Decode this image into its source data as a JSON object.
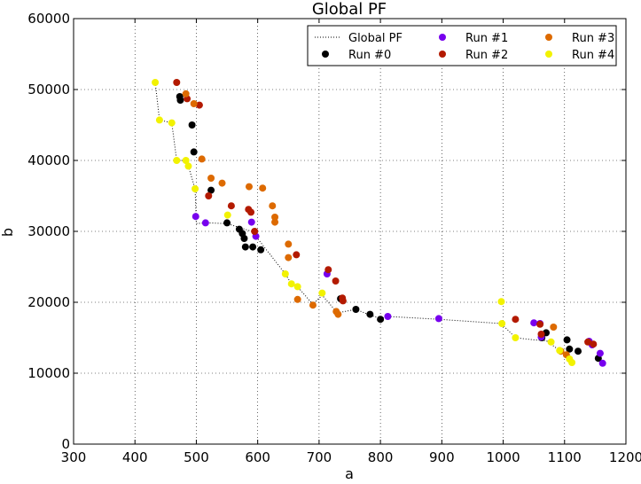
{
  "chart_data": {
    "type": "scatter",
    "title": "Global PF",
    "xlabel": "a",
    "ylabel": "b",
    "xlim": [
      300,
      1200
    ],
    "ylim": [
      0,
      60000
    ],
    "xticks": [
      300,
      400,
      500,
      600,
      700,
      800,
      900,
      1000,
      1100,
      1200
    ],
    "yticks": [
      0,
      10000,
      20000,
      30000,
      40000,
      50000,
      60000
    ],
    "grid": true,
    "legend_position": "top-right",
    "front": {
      "name": "Global PF",
      "color": "#000000",
      "style": "dotted",
      "points": [
        [
          433,
          51000
        ],
        [
          440,
          45700
        ],
        [
          460,
          45300
        ],
        [
          468,
          40000
        ],
        [
          483,
          40000
        ],
        [
          487,
          39200
        ],
        [
          498,
          36000
        ],
        [
          500,
          31100
        ],
        [
          515,
          31200
        ],
        [
          550,
          31100
        ],
        [
          590,
          30000
        ],
        [
          597,
          29300
        ],
        [
          645,
          24000
        ],
        [
          655,
          22600
        ],
        [
          665,
          22200
        ],
        [
          690,
          19700
        ],
        [
          705,
          21000
        ],
        [
          730,
          18500
        ],
        [
          760,
          19000
        ],
        [
          783,
          18200
        ],
        [
          800,
          17700
        ],
        [
          812,
          18000
        ],
        [
          895,
          17600
        ],
        [
          997,
          17000
        ],
        [
          1020,
          15000
        ],
        [
          1050,
          14700
        ],
        [
          1070,
          14600
        ],
        [
          1092,
          13200
        ],
        [
          1100,
          12900
        ],
        [
          1112,
          11500
        ]
      ]
    },
    "series": [
      {
        "name": "Run #0",
        "color": "#000000",
        "points": [
          [
            473,
            49000
          ],
          [
            474,
            48500
          ],
          [
            493,
            45000
          ],
          [
            496,
            41200
          ],
          [
            524,
            35800
          ],
          [
            550,
            31200
          ],
          [
            570,
            30300
          ],
          [
            575,
            29700
          ],
          [
            578,
            29000
          ],
          [
            580,
            27800
          ],
          [
            592,
            27800
          ],
          [
            605,
            27400
          ],
          [
            735,
            20500
          ],
          [
            760,
            19000
          ],
          [
            783,
            18300
          ],
          [
            800,
            17600
          ],
          [
            1063,
            15000
          ],
          [
            1070,
            15700
          ],
          [
            1104,
            14700
          ],
          [
            1108,
            13400
          ],
          [
            1122,
            13100
          ],
          [
            1155,
            12100
          ]
        ]
      },
      {
        "name": "Run #1",
        "color": "#7700ee",
        "points": [
          [
            499,
            32100
          ],
          [
            515,
            31200
          ],
          [
            590,
            31300
          ],
          [
            597,
            29300
          ],
          [
            713,
            24000
          ],
          [
            812,
            18000
          ],
          [
            895,
            17700
          ],
          [
            1050,
            17100
          ],
          [
            1060,
            17000
          ],
          [
            1062,
            15100
          ],
          [
            1140,
            14500
          ],
          [
            1145,
            14000
          ],
          [
            1158,
            12800
          ],
          [
            1162,
            11400
          ]
        ]
      },
      {
        "name": "Run #2",
        "color": "#b31a00",
        "points": [
          [
            468,
            51000
          ],
          [
            485,
            48700
          ],
          [
            505,
            47800
          ],
          [
            520,
            35000
          ],
          [
            557,
            33600
          ],
          [
            585,
            33100
          ],
          [
            589,
            32700
          ],
          [
            595,
            30000
          ],
          [
            663,
            26700
          ],
          [
            715,
            24600
          ],
          [
            727,
            23000
          ],
          [
            738,
            20600
          ],
          [
            739,
            20200
          ],
          [
            1020,
            17600
          ],
          [
            1060,
            16900
          ],
          [
            1062,
            15500
          ],
          [
            1138,
            14400
          ],
          [
            1147,
            14100
          ]
        ]
      },
      {
        "name": "Run #3",
        "color": "#dd6a00",
        "points": [
          [
            483,
            49400
          ],
          [
            496,
            48000
          ],
          [
            509,
            40200
          ],
          [
            524,
            37500
          ],
          [
            542,
            36800
          ],
          [
            586,
            36300
          ],
          [
            608,
            36100
          ],
          [
            624,
            33600
          ],
          [
            628,
            32000
          ],
          [
            628,
            31300
          ],
          [
            650,
            28200
          ],
          [
            650,
            26300
          ],
          [
            665,
            20400
          ],
          [
            690,
            19600
          ],
          [
            728,
            18700
          ],
          [
            731,
            18300
          ],
          [
            1082,
            16500
          ],
          [
            1094,
            13100
          ],
          [
            1103,
            12600
          ]
        ]
      },
      {
        "name": "Run #4",
        "color": "#f2f200",
        "points": [
          [
            433,
            51000
          ],
          [
            440,
            45700
          ],
          [
            460,
            45300
          ],
          [
            468,
            40000
          ],
          [
            483,
            40000
          ],
          [
            487,
            39200
          ],
          [
            498,
            36000
          ],
          [
            551,
            32300
          ],
          [
            645,
            24000
          ],
          [
            655,
            22600
          ],
          [
            665,
            22200
          ],
          [
            705,
            21300
          ],
          [
            997,
            20100
          ],
          [
            998,
            17000
          ],
          [
            1020,
            15000
          ],
          [
            1078,
            14400
          ],
          [
            1092,
            13200
          ],
          [
            1108,
            12000
          ],
          [
            1112,
            11500
          ]
        ]
      }
    ]
  }
}
